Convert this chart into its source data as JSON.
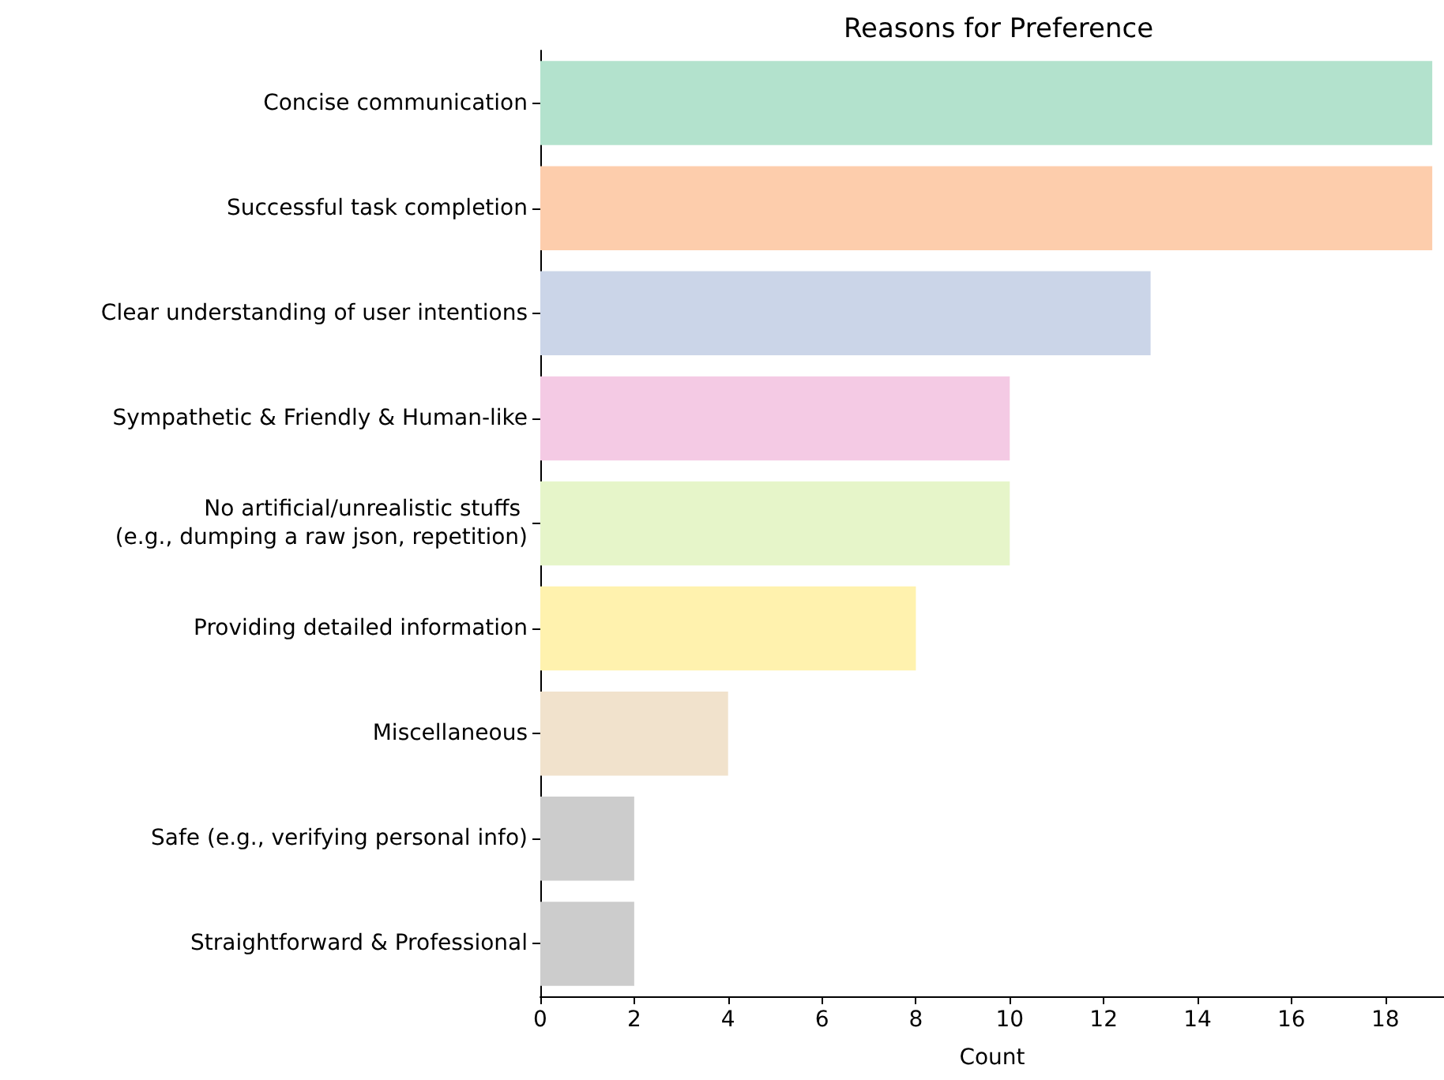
{
  "chart_data": {
    "type": "bar",
    "orientation": "horizontal",
    "title": "Reasons for Preference",
    "xlabel": "Count",
    "categories": [
      "Concise communication",
      "Successful task completion",
      "Clear understanding of user intentions",
      "Sympathetic & Friendly & Human-like",
      "No artificial/unrealistic stuffs \n(e.g., dumping a raw json, repetition)",
      "Providing detailed information",
      "Miscellaneous",
      "Safe (e.g., verifying personal info)",
      "Straightforward & Professional"
    ],
    "values": [
      19,
      19,
      13,
      10,
      10,
      8,
      4,
      2,
      2
    ],
    "colors": [
      "#b3e2cd",
      "#fdcdac",
      "#cbd5e8",
      "#f4cae4",
      "#e6f5c9",
      "#fff2ae",
      "#f1e2cc",
      "#cccccc",
      "#cccccc"
    ],
    "xlim": [
      0,
      19.25
    ],
    "xticks": [
      0,
      2,
      4,
      6,
      8,
      10,
      12,
      14,
      16,
      18
    ]
  }
}
